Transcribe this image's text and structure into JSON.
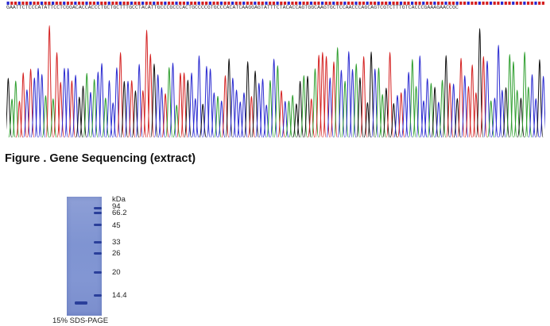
{
  "sequence": {
    "text": "GAATTCTCCCATATTCCTCGGACACCACCCTGCTGCTTTGCCTACATTGCCCGCCCACTGCCCCGTGCCCACATCAAGGAGTATTTCTACACCAGTGGCAAGTGCTCCAACCCAGCAGTCGTCTTTGTCACCCGAAAGAACCGC",
    "colors": {
      "A": "#2e9e2e",
      "C": "#2a2ad0",
      "G": "#111111",
      "T": "#d42020"
    }
  },
  "caption": "Figure . Gene Sequencing (extract)",
  "gel": {
    "unit_label": "kDa",
    "markers": [
      "94",
      "66.2",
      "45",
      "33",
      "26",
      "20",
      "14.4"
    ],
    "caption": "15% SDS-PAGE",
    "band_color": "#2a3f9a",
    "lane_color": "#8296d3"
  }
}
